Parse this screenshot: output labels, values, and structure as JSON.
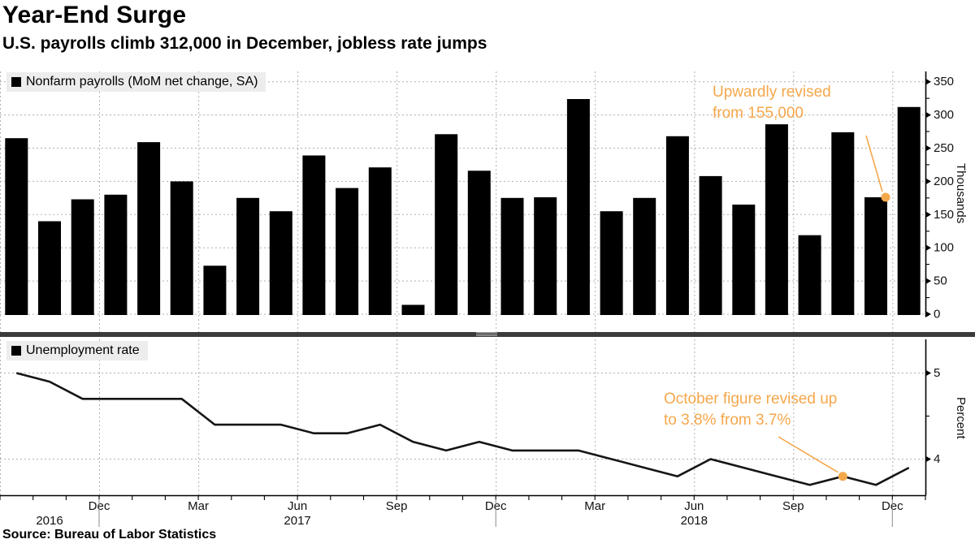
{
  "header": {
    "title": "Year-End Surge",
    "subtitle": "U.S. payrolls climb 312,000 in December, jobless rate jumps"
  },
  "source": "Source: Bureau of Labor Statistics",
  "colors": {
    "bar": "#000000",
    "line": "#151515",
    "annotation": "#f5a74b",
    "grid": "#b0b0b0",
    "legend_bg": "#ededed",
    "divider": "#3b3b3b"
  },
  "x_axis": {
    "month_tick_labels": [
      "Dec",
      "Mar",
      "Jun",
      "Sep",
      "Dec",
      "Mar",
      "Jun",
      "Sep",
      "Dec"
    ],
    "year_labels": [
      "2016",
      "2017",
      "2018"
    ]
  },
  "chart_data": [
    {
      "type": "bar",
      "legend": "Nonfarm payrolls (MoM net change, SA)",
      "ylabel": "Thousands",
      "yticks": [
        0,
        50,
        100,
        150,
        200,
        250,
        300,
        350
      ],
      "ylim": [
        0,
        366
      ],
      "x": [
        "2016-09",
        "2016-10",
        "2016-11",
        "2016-12",
        "2017-01",
        "2017-02",
        "2017-03",
        "2017-04",
        "2017-05",
        "2017-06",
        "2017-07",
        "2017-08",
        "2017-09",
        "2017-10",
        "2017-11",
        "2017-12",
        "2018-01",
        "2018-02",
        "2018-03",
        "2018-04",
        "2018-05",
        "2018-06",
        "2018-07",
        "2018-08",
        "2018-09",
        "2018-10",
        "2018-11",
        "2018-12"
      ],
      "values": [
        265,
        140,
        173,
        180,
        259,
        200,
        73,
        175,
        155,
        239,
        190,
        221,
        14,
        271,
        216,
        175,
        176,
        324,
        155,
        175,
        268,
        208,
        165,
        286,
        119,
        274,
        176,
        312
      ],
      "annotation": {
        "line1": "Upwardly revised",
        "line2": "from 155,000",
        "target_index": 26,
        "target_value": 176
      }
    },
    {
      "type": "line",
      "legend": "Unemployment rate",
      "ylabel": "Percent",
      "yticks": [
        4,
        5
      ],
      "minor_yticks": [
        4.5
      ],
      "ylim": [
        3.55,
        5.35
      ],
      "x": [
        "2016-09",
        "2016-10",
        "2016-11",
        "2016-12",
        "2017-01",
        "2017-02",
        "2017-03",
        "2017-04",
        "2017-05",
        "2017-06",
        "2017-07",
        "2017-08",
        "2017-09",
        "2017-10",
        "2017-11",
        "2017-12",
        "2018-01",
        "2018-02",
        "2018-03",
        "2018-04",
        "2018-05",
        "2018-06",
        "2018-07",
        "2018-08",
        "2018-09",
        "2018-10",
        "2018-11",
        "2018-12"
      ],
      "values": [
        5.0,
        4.9,
        4.7,
        4.7,
        4.7,
        4.7,
        4.4,
        4.4,
        4.4,
        4.3,
        4.3,
        4.4,
        4.2,
        4.1,
        4.2,
        4.1,
        4.1,
        4.1,
        4.0,
        3.9,
        3.8,
        4.0,
        3.9,
        3.8,
        3.7,
        3.8,
        3.7,
        3.9
      ],
      "annotation": {
        "line1": "October figure revised up",
        "line2": "to 3.8% from 3.7%",
        "target_index": 25,
        "target_value": 3.8
      }
    }
  ]
}
